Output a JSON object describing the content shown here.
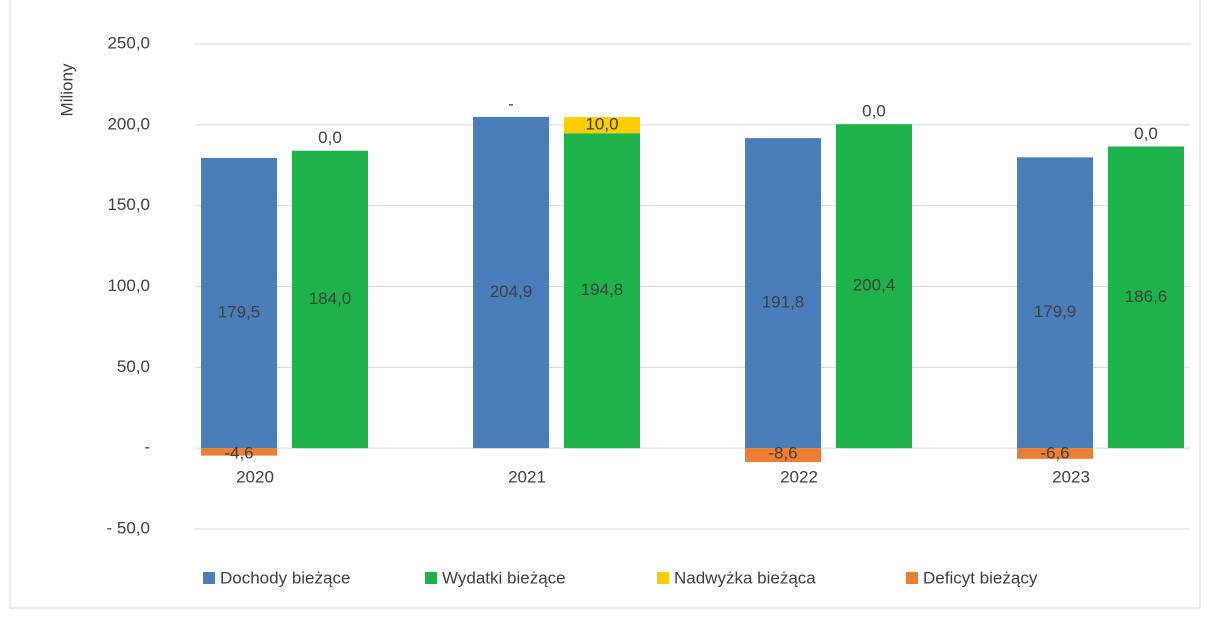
{
  "chart_data": {
    "type": "bar",
    "y_axis_label": "Miliony",
    "categories": [
      "2020",
      "2021",
      "2022",
      "2023"
    ],
    "series": [
      {
        "name": "Dochody bieżące",
        "color": "#4a7ebb",
        "stack": "a",
        "values": [
          179.5,
          204.9,
          191.8,
          179.9
        ],
        "value_labels": [
          "179,5",
          "204,9",
          "191,8",
          "179,9"
        ]
      },
      {
        "name": "Wydatki bieżące",
        "color": "#1db34a",
        "stack": "b",
        "values": [
          184.0,
          194.8,
          200.4,
          186.6
        ],
        "value_labels": [
          "184,0",
          "194,8",
          "200,4",
          "186,6"
        ]
      },
      {
        "name": "Nadwyżka bieżąca",
        "color": "#ffcc00",
        "stack": "b",
        "values": [
          0,
          10.0,
          0,
          0
        ],
        "value_labels": [
          "0,0",
          "10,0",
          "0,0",
          "0,0"
        ]
      },
      {
        "name": "Deficyt bieżący",
        "color": "#ed7d31",
        "stack": "a",
        "values": [
          -4.6,
          0,
          -8.6,
          -6.6
        ],
        "value_labels": [
          "-4,6",
          "-",
          "-8,6",
          "-6,6"
        ]
      }
    ],
    "ylim": [
      -50,
      250
    ],
    "yticks": [
      {
        "value": -50,
        "label": "- 50,0"
      },
      {
        "value": 0,
        "label": "-"
      },
      {
        "value": 50,
        "label": "50,0"
      },
      {
        "value": 100,
        "label": "100,0"
      },
      {
        "value": 150,
        "label": "150,0"
      },
      {
        "value": 200,
        "label": "200,0"
      },
      {
        "value": 250,
        "label": "250,0"
      }
    ],
    "grid": true,
    "legend": "bottom"
  }
}
